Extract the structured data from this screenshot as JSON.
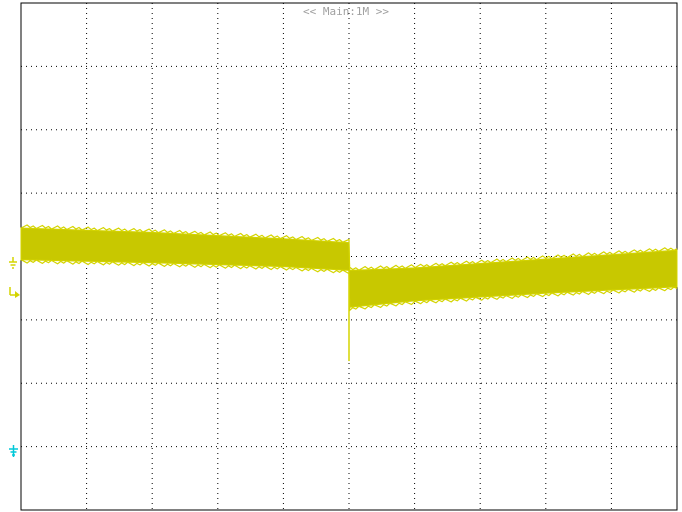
{
  "header": {
    "title": "<< Main:1M >>"
  },
  "colors": {
    "background": "#ffffff",
    "frame": "#000000",
    "grid": "#000000",
    "trace": "#d4d400",
    "trace_band": "#c8c800",
    "ch1_marker": "#d4d400",
    "ch2_marker": "#00c8d8",
    "header_text": "#a0a0a0"
  },
  "markers": {
    "ch1_ground": {
      "icon": "ground-icon",
      "color": "#d4d400"
    },
    "trigger_level": {
      "icon": "trigger-level-icon",
      "color": "#d4d400"
    },
    "ch2_ground": {
      "icon": "ground-icon",
      "color": "#00c8d8"
    }
  },
  "chart_data": {
    "type": "line",
    "title": "",
    "xlabel": "",
    "ylabel": "",
    "xlim": [
      0,
      10
    ],
    "ylim": [
      -4,
      4
    ],
    "grid": true,
    "grid_divisions": {
      "x": 10,
      "y": 8
    },
    "series": [
      {
        "band": true,
        "x": [
          0.0,
          2.0,
          4.0,
          5.0,
          5.01,
          6.0,
          8.0,
          10.0
        ],
        "y_top": [
          0.45,
          0.38,
          0.28,
          0.22,
          -0.22,
          -0.18,
          -0.04,
          0.1
        ],
        "y_bot": [
          -0.05,
          -0.1,
          -0.16,
          -0.22,
          -0.8,
          -0.7,
          -0.58,
          -0.48
        ]
      }
    ],
    "spikes": [
      {
        "x": 5.0,
        "y_from": -0.22,
        "y_to": -1.65
      }
    ]
  }
}
